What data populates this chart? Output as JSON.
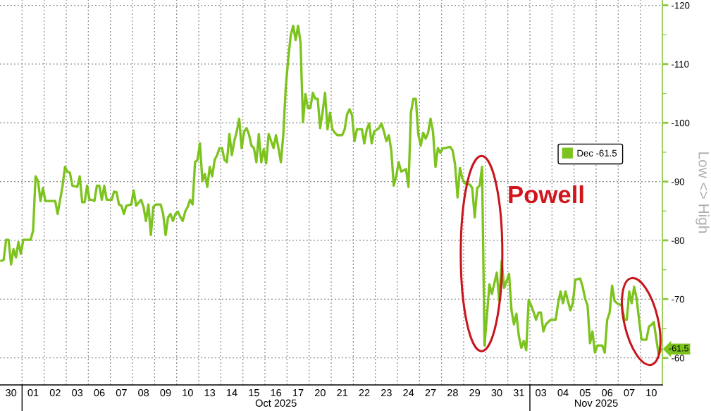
{
  "chart_data": {
    "type": "line",
    "ylabel": "Low <> High",
    "annotations": [
      "Powell",
      "Oct 2025",
      "Nov 2025"
    ],
    "categories": [
      null,
      null,
      null,
      null,
      "30",
      null,
      null,
      null,
      null,
      null,
      null,
      null,
      null,
      "01",
      null,
      null,
      null,
      null,
      null,
      null,
      null,
      null,
      "02",
      null,
      null,
      null,
      null,
      null,
      null,
      null,
      null,
      "03",
      null,
      null,
      null,
      null,
      null,
      null,
      null,
      null,
      "06",
      null,
      null,
      null,
      null,
      null,
      null,
      null,
      null,
      "07",
      null,
      null,
      null,
      null,
      null,
      null,
      null,
      null,
      "08",
      null,
      null,
      null,
      null,
      null,
      null,
      null,
      null,
      "09",
      null,
      null,
      null,
      null,
      null,
      null,
      null,
      null,
      "10",
      null,
      null,
      null,
      null,
      null,
      null,
      null,
      null,
      "13",
      null,
      null,
      null,
      null,
      null,
      null,
      null,
      null,
      "14",
      null,
      null,
      null,
      null,
      null,
      null,
      null,
      null,
      "15",
      null,
      null,
      null,
      null,
      null,
      null,
      null,
      null,
      "16",
      null,
      null,
      null,
      null,
      null,
      null,
      null,
      null,
      "17",
      null,
      null,
      null,
      null,
      null,
      null,
      null,
      null,
      "20",
      null,
      null,
      null,
      null,
      null,
      null,
      null,
      null,
      "21",
      null,
      null,
      null,
      null,
      null,
      null,
      null,
      null,
      "22",
      null,
      null,
      null,
      null,
      null,
      null,
      null,
      null,
      "23",
      null,
      null,
      null,
      null,
      null,
      null,
      null,
      null,
      "24",
      null,
      null,
      null,
      null,
      null,
      null,
      null,
      null,
      "27",
      null,
      null,
      null,
      null,
      null,
      null,
      null,
      null,
      "28",
      null,
      null,
      null,
      null,
      null,
      null,
      null,
      null,
      "29",
      null,
      null,
      null,
      null,
      null,
      null,
      null,
      null,
      "30",
      null,
      null,
      null,
      null,
      null,
      null,
      null,
      null,
      "31",
      null,
      null,
      null,
      null,
      null,
      null,
      null,
      null,
      "03",
      null,
      null,
      null,
      null,
      null,
      null,
      null,
      null,
      "04",
      null,
      null,
      null,
      null,
      null,
      null,
      null,
      null,
      "05",
      null,
      null,
      null,
      null,
      null,
      null,
      null,
      null,
      "06",
      null,
      null,
      null,
      null,
      null,
      null,
      null,
      null,
      "07",
      null,
      null,
      null,
      null,
      null,
      null,
      null,
      null,
      "10",
      null,
      null,
      null,
      null
    ],
    "ylim": [
      -55.4,
      -120.9
    ],
    "yticks": [
      -120,
      -110,
      -100,
      -90,
      -80,
      -70,
      -60
    ],
    "grid": true,
    "legend": "right",
    "series": [
      {
        "name": "Dec -61.5",
        "color": "#7dc31e",
        "values": [
          -76.5,
          -76.7,
          -80.1,
          -80.1,
          -75.9,
          -78.5,
          -77.1,
          -79.7,
          -77.7,
          -80.1,
          -80.1,
          -80.1,
          -80.1,
          -81.7,
          -90.9,
          -90.1,
          -86.7,
          -88.9,
          -86.7,
          -86.7,
          -86.7,
          -86.7,
          -86.7,
          -84.5,
          -86.9,
          -89.3,
          -92.5,
          -91.7,
          -91.5,
          -89.3,
          -89.2,
          -89.1,
          -90.9,
          -86.5,
          -86.5,
          -89.3,
          -86.9,
          -86.9,
          -86.7,
          -89.3,
          -89.3,
          -86.9,
          -89.3,
          -86.9,
          -86.9,
          -86.9,
          -88.3,
          -88.2,
          -86.1,
          -85.9,
          -84.5,
          -85.9,
          -86.0,
          -86.1,
          -88.5,
          -85.9,
          -86.4,
          -86.9,
          -85.7,
          -83.3,
          -86.1,
          -80.9,
          -85.7,
          -86.1,
          -86.1,
          -86.1,
          -84.5,
          -80.9,
          -83.9,
          -84.5,
          -83.3,
          -84.5,
          -84.9,
          -84.0,
          -83.3,
          -84.9,
          -85.7,
          -86.9,
          -86.1,
          -93.3,
          -93.7,
          -96.5,
          -90.1,
          -91.3,
          -89.1,
          -92.5,
          -90.9,
          -93.7,
          -94.5,
          -95.7,
          -95.7,
          -93.7,
          -93.3,
          -98.1,
          -94.5,
          -96.9,
          -98.5,
          -100.7,
          -95.7,
          -98.5,
          -99.1,
          -98.0,
          -96.1,
          -95.7,
          -93.3,
          -98.1,
          -93.3,
          -95.5,
          -93.1,
          -98.1,
          -96.9,
          -95.7,
          -97.9,
          -95.7,
          -93.3,
          -98.1,
          -106.1,
          -110.9,
          -114.9,
          -116.5,
          -114.1,
          -116.5,
          -113.7,
          -100.1,
          -104.9,
          -102.5,
          -102.5,
          -105.1,
          -104.1,
          -104.1,
          -99.1,
          -101.9,
          -105.1,
          -98.9,
          -101.7,
          -98.9,
          -98.3,
          -97.9,
          -97.9,
          -97.9,
          -98.9,
          -101.5,
          -102.3,
          -101.3,
          -96.9,
          -98.9,
          -98.9,
          -98.9,
          -96.5,
          -98.9,
          -99.9,
          -96.5,
          -98.5,
          -98.8,
          -99.1,
          -99.9,
          -98.5,
          -96.9,
          -97.9,
          -95.3,
          -89.3,
          -90.9,
          -93.3,
          -91.7,
          -91.9,
          -92.1,
          -89.1,
          -101.7,
          -104.1,
          -104.1,
          -98.1,
          -96.1,
          -98.3,
          -97.3,
          -98.3,
          -100.7,
          -98.5,
          -92.5,
          -95.7,
          -94.9,
          -95.7,
          -95.7,
          -95.8,
          -95.9,
          -95.3,
          -92.9,
          -87.3,
          -92.3,
          -90.5,
          -89.7,
          -89.6,
          -89.5,
          -88.9,
          -83.9,
          -88.9,
          -89.3,
          -92.5,
          -62.1,
          -67.3,
          -72.5,
          -70.9,
          -72.7,
          -74.5,
          -69.7,
          -76.5,
          -71.9,
          -73.1,
          -74.3,
          -68.1,
          -65.7,
          -67.5,
          -63.7,
          -61.7,
          -62.9,
          -61.3,
          -69.9,
          -68.9,
          -67.8,
          -66.5,
          -67.7,
          -67.7,
          -64.5,
          -65.7,
          -66.1,
          -66.5,
          -66.5,
          -66.5,
          -69.3,
          -71.3,
          -69.3,
          -71.3,
          -69.7,
          -68.1,
          -69.3,
          -73.3,
          -73.4,
          -73.5,
          -72.1,
          -70.1,
          -68.9,
          -62.5,
          -64.5,
          -60.9,
          -62.1,
          -62.1,
          -62.1,
          -60.9,
          -66.5,
          -67.7,
          -72.3,
          -69.7,
          -69.3,
          -69.1,
          -68.9,
          -66.5,
          -66.5,
          -71.3,
          -69.3,
          -72.1,
          -70.1,
          -66.5,
          -63.1,
          -63.1,
          -63.1,
          -65.3,
          -65.6,
          -66.1,
          -63.3,
          -60.5,
          -61.5
        ],
        "value_labels": [
          null,
          null,
          null,
          null,
          null,
          null,
          null,
          null,
          null,
          null,
          null,
          null,
          null,
          null,
          null,
          null,
          null,
          null,
          null,
          null,
          null,
          null,
          null,
          null,
          null,
          null,
          null,
          null,
          null,
          null,
          null,
          null,
          null,
          null,
          null,
          null,
          null,
          null,
          null,
          null,
          null,
          null,
          null,
          null,
          null,
          null,
          null,
          null,
          null,
          null,
          null,
          null,
          null,
          null,
          null,
          null,
          null,
          null,
          null,
          null,
          null,
          null,
          null,
          null,
          null,
          null,
          null,
          null,
          null,
          null,
          null,
          null,
          null,
          null,
          null,
          null,
          null,
          null,
          null,
          null,
          null,
          null,
          null,
          null,
          null,
          null,
          null,
          null,
          null,
          null,
          null,
          null,
          null,
          null,
          null,
          null,
          null,
          null,
          null,
          null,
          null,
          null,
          null,
          null,
          null,
          null,
          null,
          null,
          null,
          null,
          null,
          null,
          null,
          null,
          null,
          null,
          null,
          null,
          null,
          null,
          null,
          null,
          null,
          null,
          null,
          null,
          null,
          null,
          null,
          null,
          null,
          null,
          null,
          null,
          null,
          null,
          null,
          null,
          null,
          null,
          null,
          null,
          null,
          null,
          null,
          null,
          null,
          null,
          null,
          null,
          null,
          null,
          null,
          null,
          null,
          null,
          null,
          null,
          null,
          null,
          null,
          null,
          null,
          null,
          null,
          null,
          null,
          null,
          null,
          null,
          null,
          null,
          null,
          null,
          null,
          null,
          null,
          null,
          null,
          null,
          null,
          null,
          null,
          null,
          null,
          null,
          null,
          null,
          null,
          null,
          null,
          null,
          null,
          null,
          null,
          null,
          null,
          null,
          null,
          null,
          null,
          null,
          null,
          null,
          null,
          null,
          null,
          null,
          null,
          null,
          null,
          null,
          null,
          null,
          null,
          null,
          null,
          null,
          null,
          null,
          null,
          null,
          null,
          null,
          null,
          null,
          null,
          null,
          null,
          null,
          null,
          null,
          null,
          null,
          null,
          null,
          null,
          null,
          null,
          null,
          null,
          null,
          null,
          null,
          null,
          null,
          null,
          null,
          null,
          null,
          null,
          null,
          null,
          null,
          null,
          null,
          null,
          null,
          null,
          null,
          null,
          null,
          null,
          null,
          null,
          null,
          null,
          null,
          null,
          "-61.5"
        ]
      }
    ]
  }
}
